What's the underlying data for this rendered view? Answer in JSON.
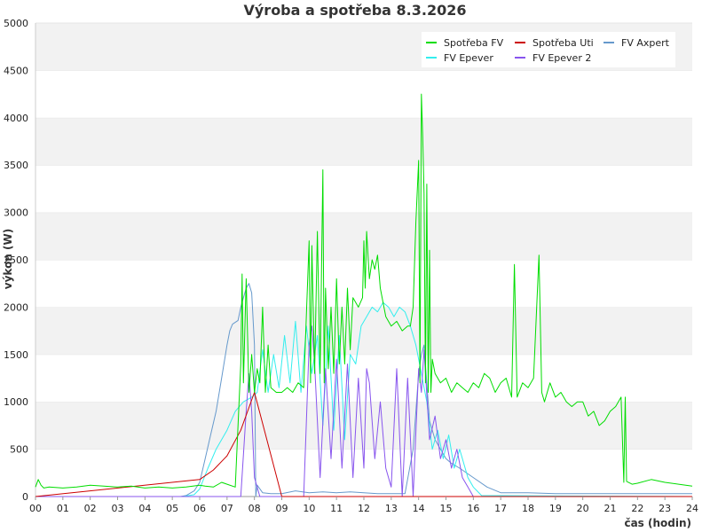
{
  "chart_data": {
    "type": "line",
    "title": "Výroba a spotřeba 8.3.2026",
    "xlabel": "čas (hodin)",
    "ylabel": "výkon (W)",
    "xlim": [
      0,
      24
    ],
    "ylim": [
      0,
      5000
    ],
    "x_ticks": [
      "00",
      "01",
      "02",
      "03",
      "04",
      "05",
      "06",
      "07",
      "08",
      "09",
      "10",
      "11",
      "12",
      "13",
      "14",
      "15",
      "16",
      "17",
      "18",
      "19",
      "20",
      "21",
      "22",
      "23",
      "24"
    ],
    "y_ticks": [
      "0",
      "500",
      "1000",
      "1500",
      "2000",
      "2500",
      "3000",
      "3500",
      "4000",
      "4500",
      "5000"
    ],
    "grid": "horizontal alternating bands",
    "legend_position": "top-right",
    "series": [
      {
        "name": "Spotřeba FV",
        "color": "#00dd00",
        "x": [
          0,
          0.1,
          0.2,
          0.3,
          0.5,
          1,
          1.5,
          2,
          2.5,
          3,
          3.5,
          4,
          4.5,
          5,
          5.5,
          6,
          6.2,
          6.5,
          6.8,
          7.0,
          7.3,
          7.5,
          7.55,
          7.6,
          7.7,
          7.8,
          7.9,
          8.0,
          8.1,
          8.2,
          8.3,
          8.4,
          8.5,
          8.6,
          8.8,
          9.0,
          9.2,
          9.4,
          9.6,
          9.8,
          10.0,
          10.05,
          10.1,
          10.2,
          10.3,
          10.4,
          10.5,
          10.55,
          10.6,
          10.7,
          10.8,
          10.9,
          11.0,
          11.1,
          11.2,
          11.3,
          11.4,
          11.5,
          11.6,
          11.8,
          11.95,
          12.0,
          12.05,
          12.1,
          12.2,
          12.3,
          12.4,
          12.5,
          12.6,
          12.8,
          13.0,
          13.2,
          13.4,
          13.6,
          13.7,
          13.8,
          13.9,
          14.0,
          14.05,
          14.1,
          14.15,
          14.2,
          14.25,
          14.3,
          14.35,
          14.4,
          14.45,
          14.5,
          14.6,
          14.8,
          15.0,
          15.2,
          15.4,
          15.6,
          15.8,
          16.0,
          16.2,
          16.4,
          16.6,
          16.8,
          17.0,
          17.2,
          17.4,
          17.5,
          17.6,
          17.8,
          18.0,
          18.2,
          18.4,
          18.5,
          18.6,
          18.8,
          19.0,
          19.2,
          19.4,
          19.6,
          19.8,
          20.0,
          20.2,
          20.4,
          20.6,
          20.8,
          21.0,
          21.2,
          21.4,
          21.5,
          21.55,
          21.6,
          21.8,
          22.0,
          22.5,
          23.0,
          23.5,
          24.0
        ],
        "values": [
          100,
          180,
          120,
          90,
          100,
          90,
          100,
          120,
          110,
          100,
          110,
          90,
          100,
          90,
          100,
          120,
          110,
          100,
          150,
          130,
          100,
          1400,
          2350,
          1200,
          2300,
          1100,
          1500,
          1100,
          1350,
          1200,
          2000,
          1100,
          1600,
          1150,
          1100,
          1100,
          1150,
          1100,
          1200,
          1150,
          2700,
          1200,
          2650,
          1300,
          2800,
          1300,
          3450,
          1200,
          2200,
          1350,
          2000,
          1300,
          2300,
          1400,
          2000,
          1400,
          2200,
          1550,
          2100,
          2000,
          2100,
          2700,
          2200,
          2800,
          2300,
          2500,
          2400,
          2550,
          2200,
          1900,
          1800,
          1850,
          1750,
          1800,
          1800,
          2000,
          2900,
          3550,
          1200,
          4250,
          3800,
          3200,
          1200,
          3300,
          1100,
          2600,
          1100,
          1450,
          1300,
          1200,
          1250,
          1100,
          1200,
          1150,
          1100,
          1200,
          1150,
          1300,
          1250,
          1100,
          1200,
          1250,
          1050,
          2450,
          1050,
          1200,
          1150,
          1250,
          2550,
          1100,
          1000,
          1200,
          1050,
          1100,
          1000,
          950,
          1000,
          1000,
          850,
          900,
          750,
          800,
          900,
          950,
          1050,
          150,
          1050,
          160,
          130,
          140,
          180,
          150,
          130,
          110
        ]
      },
      {
        "name": "Spotřeba Uti",
        "color": "#cc0000",
        "x": [
          0,
          6,
          6.5,
          7,
          7.5,
          8,
          9,
          24
        ],
        "values": [
          0,
          180,
          280,
          430,
          700,
          1100,
          0,
          0
        ]
      },
      {
        "name": "FV Axpert",
        "color": "#6699cc",
        "x": [
          0,
          5.3,
          5.5,
          5.8,
          6.0,
          6.2,
          6.4,
          6.6,
          6.8,
          7.0,
          7.1,
          7.2,
          7.4,
          7.5,
          7.6,
          7.7,
          7.8,
          7.9,
          8.0,
          8.05,
          8.1,
          8.3,
          8.6,
          9.0,
          9.5,
          10,
          10.5,
          11,
          11.5,
          12,
          12.5,
          13,
          13.5,
          13.8,
          14.0,
          14.1,
          14.2,
          14.3,
          14.4,
          14.6,
          14.8,
          15,
          15.2,
          15.5,
          16,
          16.5,
          17,
          17.5,
          18,
          19,
          20,
          21,
          22,
          23,
          24
        ],
        "values": [
          0,
          0,
          10,
          60,
          150,
          400,
          650,
          900,
          1250,
          1600,
          1750,
          1820,
          1860,
          2000,
          2100,
          2200,
          2250,
          2150,
          1600,
          0,
          120,
          40,
          30,
          30,
          60,
          40,
          50,
          40,
          50,
          40,
          30,
          30,
          30,
          500,
          1300,
          1500,
          1600,
          1200,
          800,
          600,
          500,
          400,
          350,
          300,
          200,
          100,
          40,
          40,
          40,
          30,
          30,
          30,
          30,
          30,
          30
        ]
      },
      {
        "name": "FV Epever",
        "color": "#33eeee",
        "x": [
          0,
          5.4,
          5.8,
          6.0,
          6.3,
          6.6,
          7.0,
          7.3,
          7.6,
          7.9,
          8.1,
          8.3,
          8.5,
          8.7,
          8.9,
          9.1,
          9.3,
          9.5,
          9.7,
          9.9,
          10.1,
          10.3,
          10.5,
          10.7,
          10.9,
          11.1,
          11.3,
          11.5,
          11.7,
          11.9,
          12.1,
          12.3,
          12.5,
          12.7,
          12.9,
          13.1,
          13.3,
          13.5,
          13.7,
          13.9,
          14.1,
          14.3,
          14.5,
          14.7,
          14.9,
          15.1,
          15.3,
          15.5,
          15.8,
          16.0,
          16.3,
          24
        ],
        "values": [
          0,
          0,
          20,
          80,
          300,
          500,
          700,
          900,
          1000,
          1050,
          1100,
          1550,
          1100,
          1500,
          1150,
          1700,
          1200,
          1850,
          1100,
          1800,
          1300,
          1700,
          750,
          1800,
          700,
          1700,
          600,
          1500,
          1400,
          1800,
          1900,
          2000,
          1950,
          2050,
          2000,
          1900,
          2000,
          1950,
          1800,
          1600,
          1300,
          1000,
          500,
          700,
          400,
          650,
          300,
          500,
          200,
          100,
          10,
          0
        ]
      },
      {
        "name": "FV Epever 2",
        "color": "#8855ee",
        "x": [
          0,
          7.5,
          7.7,
          7.8,
          7.9,
          8.0,
          8.2,
          8.4,
          8.6,
          8.8,
          9.0,
          9.2,
          9.4,
          9.6,
          9.8,
          10.0,
          10.1,
          10.2,
          10.4,
          10.6,
          10.8,
          11.0,
          11.2,
          11.4,
          11.6,
          11.8,
          12.0,
          12.1,
          12.2,
          12.4,
          12.6,
          12.8,
          13.0,
          13.2,
          13.4,
          13.6,
          13.8,
          14.0,
          14.1,
          14.2,
          14.4,
          14.6,
          14.8,
          15.0,
          15.2,
          15.4,
          15.6,
          15.8,
          16.0,
          24
        ],
        "values": [
          0,
          0,
          900,
          1300,
          900,
          200,
          0,
          0,
          0,
          0,
          0,
          0,
          0,
          0,
          0,
          1600,
          1800,
          1400,
          200,
          1350,
          400,
          1450,
          300,
          1400,
          200,
          1250,
          300,
          1350,
          1200,
          400,
          1000,
          300,
          100,
          1350,
          0,
          1250,
          0,
          1350,
          1100,
          1550,
          600,
          850,
          400,
          600,
          300,
          500,
          200,
          100,
          0,
          0
        ]
      }
    ]
  }
}
